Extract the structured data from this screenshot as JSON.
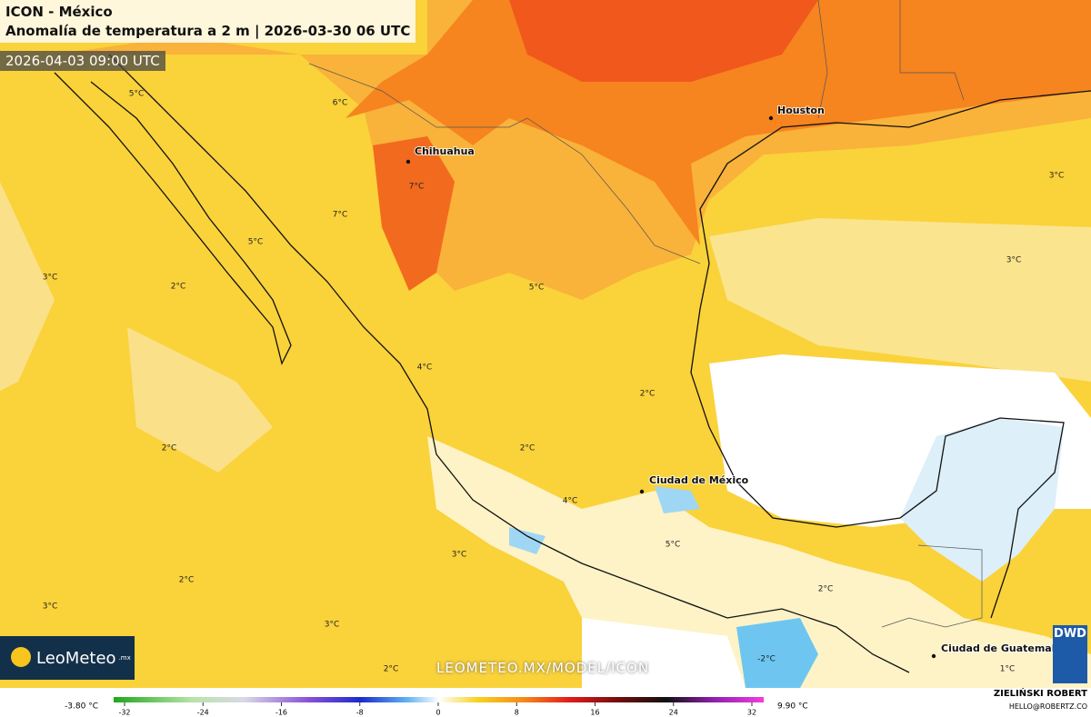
{
  "header": {
    "model": "ICON - México",
    "title": "Anomalía de temperatura a 2 m | 2026-03-30 06 UTC",
    "valid_time": "2026-04-03 09:00 UTC"
  },
  "cities": [
    "Houston",
    "Chihuahua",
    "Ciudad de México",
    "Ciudad de Guatemala"
  ],
  "anomaly_labels": [
    "5°C",
    "6°C",
    "7°C",
    "7°C",
    "5°C",
    "3°C",
    "2°C",
    "5°C",
    "4°C",
    "2°C",
    "2°C",
    "2°C",
    "4°C",
    "5°C",
    "3°C",
    "2°C",
    "3°C",
    "3°C",
    "2°C",
    "2°C",
    "-2°C",
    "3°C",
    "3°C",
    "1°C"
  ],
  "brand": {
    "logo": "LeoMeteo",
    "logo_suffix": ".mx",
    "url": "LEOMETEO.MX/MODEL/ICON",
    "provider": "DWD",
    "author": "ZIELIŃSKI ROBERT",
    "email": "HELLO@ROBERTZ.CO"
  },
  "colorbar": {
    "min_label": "-3.80 °C",
    "max_label": "9.90 °C",
    "ticks": [
      -32,
      -24,
      -16,
      -8,
      0,
      8,
      16,
      24,
      32
    ]
  }
}
